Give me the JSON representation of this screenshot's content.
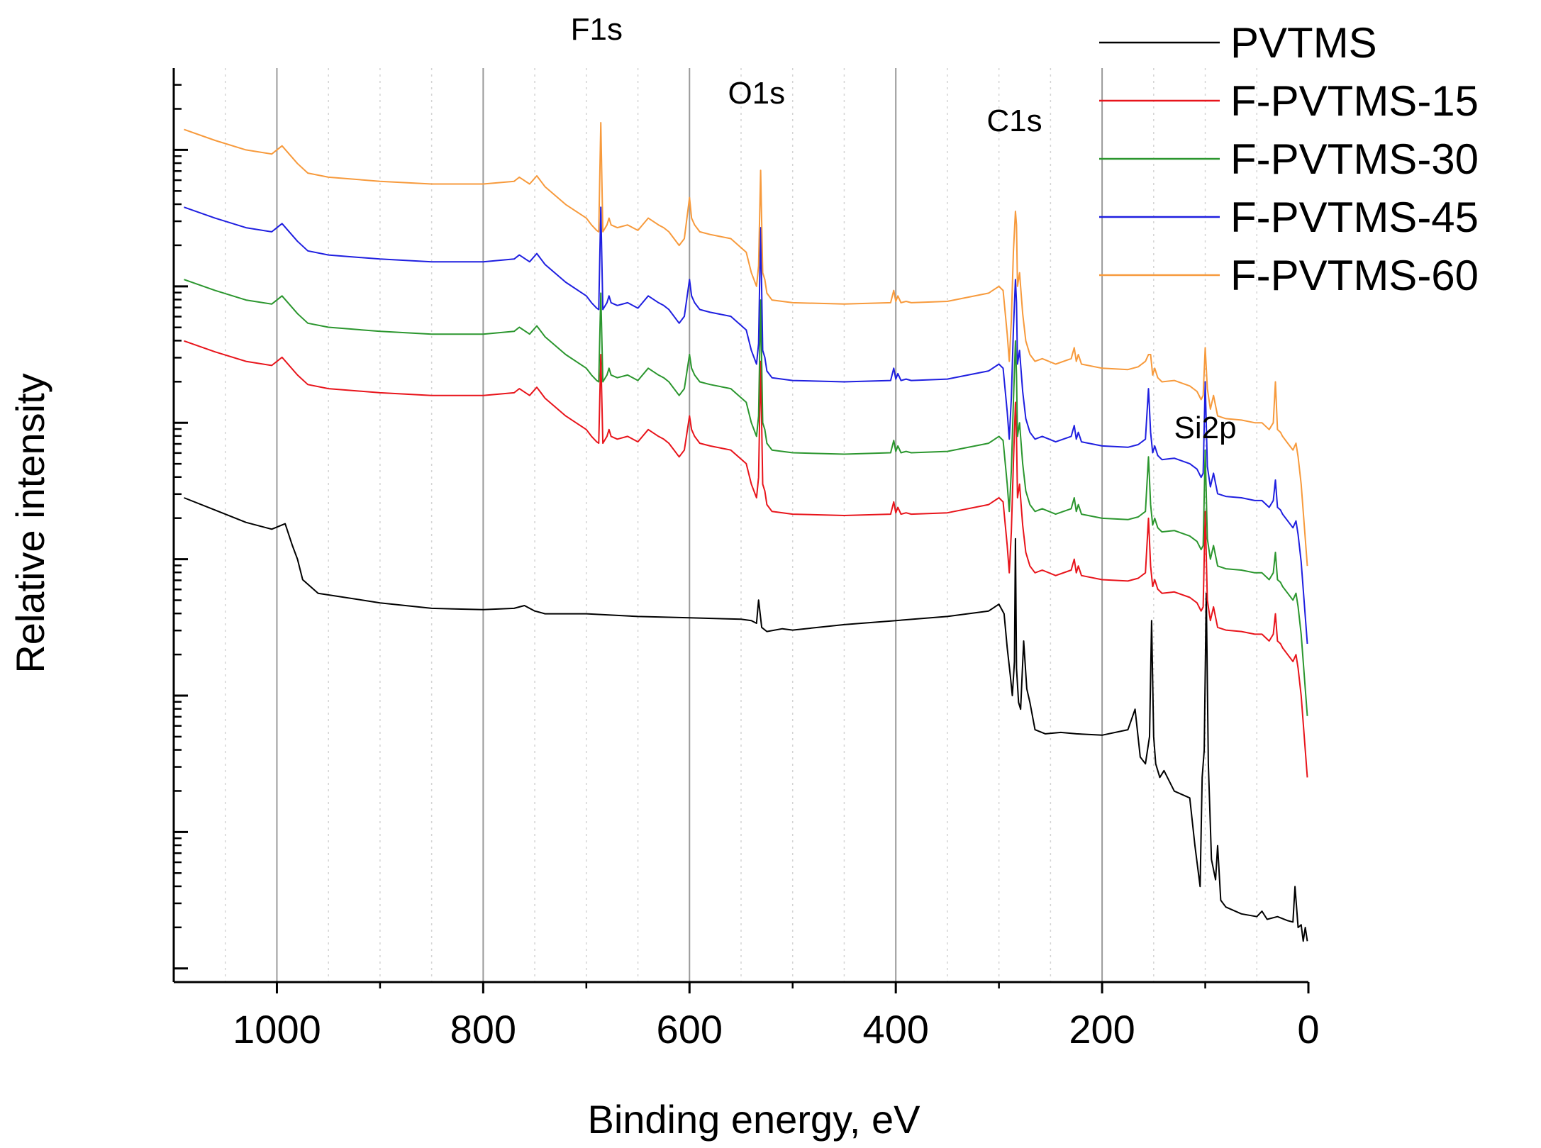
{
  "chart_data": {
    "type": "line",
    "title": "",
    "xlabel": "Binding energy, eV",
    "ylabel": "Relative intensity",
    "xlim": [
      1100,
      0
    ],
    "x_reversed": true,
    "y_scale": "log",
    "y_tick_labels_shown": false,
    "x_ticks": [
      {
        "value": 1000,
        "label": "1000"
      },
      {
        "value": 800,
        "label": "800"
      },
      {
        "value": 600,
        "label": "600"
      },
      {
        "value": 400,
        "label": "400"
      },
      {
        "value": 200,
        "label": "200"
      },
      {
        "value": 0,
        "label": "0"
      }
    ],
    "grid": {
      "major_vertical": [
        1000,
        800,
        600,
        400,
        200
      ],
      "minor_vertical_dotted": true
    },
    "annotations": [
      {
        "text": "F1s",
        "x": 690
      },
      {
        "text": "O1s",
        "x": 535
      },
      {
        "text": "C1s",
        "x": 285
      },
      {
        "text": "Si2p",
        "x": 100
      }
    ],
    "legend_position": "top-right",
    "series": [
      {
        "name": "PVTMS",
        "color": "#000000",
        "x": [
          1090,
          1060,
          1030,
          1005,
          992,
          985,
          980,
          975,
          960,
          900,
          850,
          800,
          770,
          760,
          750,
          745,
          740,
          700,
          650,
          600,
          550,
          540,
          535,
          533,
          530,
          525,
          510,
          500,
          450,
          400,
          350,
          310,
          300,
          295,
          292,
          289,
          287,
          285,
          284,
          283,
          281,
          279,
          276,
          273,
          270,
          265,
          255,
          240,
          225,
          200,
          175,
          168,
          163,
          158,
          154,
          152,
          150,
          148,
          144,
          140,
          130,
          115,
          110,
          105,
          103,
          101,
          99,
          97,
          94,
          90,
          88,
          85,
          80,
          65,
          50,
          45,
          40,
          30,
          20,
          15,
          13,
          10,
          7,
          5,
          3,
          1
        ],
        "y": [
          6.45,
          6.36,
          6.27,
          6.22,
          6.26,
          6.1,
          6.0,
          5.85,
          5.75,
          5.68,
          5.64,
          5.63,
          5.64,
          5.66,
          5.62,
          5.61,
          5.6,
          5.6,
          5.58,
          5.57,
          5.56,
          5.55,
          5.53,
          5.7,
          5.5,
          5.47,
          5.49,
          5.48,
          5.52,
          5.55,
          5.58,
          5.62,
          5.67,
          5.6,
          5.35,
          5.15,
          5.0,
          5.25,
          6.15,
          5.2,
          4.95,
          4.9,
          5.4,
          5.05,
          4.95,
          4.75,
          4.72,
          4.73,
          4.72,
          4.71,
          4.75,
          4.9,
          4.55,
          4.5,
          4.7,
          5.55,
          4.7,
          4.5,
          4.4,
          4.45,
          4.3,
          4.25,
          3.9,
          3.6,
          4.4,
          4.6,
          5.75,
          4.5,
          3.8,
          3.65,
          3.9,
          3.5,
          3.45,
          3.4,
          3.38,
          3.42,
          3.36,
          3.38,
          3.35,
          3.34,
          3.6,
          3.3,
          3.32,
          3.2,
          3.3,
          3.2
        ]
      },
      {
        "name": "F-PVTMS-15",
        "color": "#e8141b",
        "x": [
          1090,
          1060,
          1030,
          1005,
          995,
          980,
          970,
          950,
          900,
          850,
          800,
          770,
          765,
          755,
          748,
          740,
          720,
          700,
          695,
          690,
          688,
          686,
          684,
          680,
          678,
          676,
          670,
          660,
          650,
          640,
          630,
          625,
          620,
          610,
          605,
          600,
          598,
          595,
          590,
          580,
          560,
          545,
          540,
          535,
          533,
          531,
          529,
          527,
          525,
          520,
          500,
          450,
          405,
          402,
          400,
          398,
          395,
          390,
          385,
          350,
          310,
          300,
          296,
          292,
          290,
          288,
          286,
          284,
          283,
          282,
          280,
          277,
          274,
          270,
          265,
          258,
          245,
          230,
          227,
          225,
          223,
          220,
          200,
          175,
          165,
          158,
          155,
          153,
          151,
          149,
          146,
          142,
          130,
          115,
          108,
          104,
          102,
          100,
          98,
          95,
          92,
          88,
          80,
          65,
          52,
          45,
          38,
          34,
          32,
          30,
          27,
          25,
          20,
          15,
          12,
          10,
          7,
          5,
          3,
          1
        ],
        "y": [
          7.6,
          7.52,
          7.45,
          7.42,
          7.48,
          7.35,
          7.28,
          7.25,
          7.22,
          7.2,
          7.2,
          7.22,
          7.25,
          7.2,
          7.26,
          7.18,
          7.05,
          6.95,
          6.9,
          6.86,
          6.85,
          7.5,
          6.85,
          6.9,
          6.95,
          6.9,
          6.88,
          6.9,
          6.86,
          6.95,
          6.9,
          6.88,
          6.85,
          6.75,
          6.8,
          7.05,
          6.95,
          6.9,
          6.85,
          6.83,
          6.8,
          6.7,
          6.55,
          6.45,
          6.6,
          7.45,
          6.55,
          6.5,
          6.4,
          6.35,
          6.33,
          6.32,
          6.33,
          6.42,
          6.34,
          6.38,
          6.33,
          6.34,
          6.33,
          6.34,
          6.4,
          6.45,
          6.42,
          6.1,
          5.9,
          6.2,
          6.7,
          7.15,
          6.9,
          6.45,
          6.55,
          6.25,
          6.05,
          5.95,
          5.9,
          5.92,
          5.88,
          5.92,
          6.0,
          5.9,
          5.95,
          5.88,
          5.85,
          5.84,
          5.86,
          5.9,
          6.3,
          5.95,
          5.8,
          5.85,
          5.78,
          5.75,
          5.76,
          5.72,
          5.68,
          5.62,
          5.65,
          6.35,
          5.7,
          5.55,
          5.65,
          5.5,
          5.48,
          5.47,
          5.45,
          5.45,
          5.4,
          5.45,
          5.6,
          5.4,
          5.38,
          5.35,
          5.3,
          5.25,
          5.3,
          5.2,
          5.0,
          4.8,
          4.6,
          4.4
        ]
      },
      {
        "name": "F-PVTMS-30",
        "color": "#2b962e",
        "x": [
          1090,
          1060,
          1030,
          1005,
          995,
          980,
          970,
          950,
          900,
          850,
          800,
          770,
          765,
          755,
          748,
          740,
          720,
          700,
          695,
          690,
          688,
          686,
          684,
          680,
          678,
          676,
          670,
          660,
          650,
          640,
          630,
          625,
          620,
          610,
          605,
          600,
          598,
          595,
          590,
          580,
          560,
          545,
          540,
          535,
          533,
          531,
          529,
          527,
          525,
          520,
          500,
          450,
          405,
          402,
          400,
          398,
          395,
          390,
          385,
          350,
          310,
          300,
          296,
          292,
          290,
          288,
          286,
          284,
          283,
          282,
          280,
          277,
          274,
          270,
          265,
          258,
          245,
          230,
          227,
          225,
          223,
          220,
          200,
          175,
          165,
          158,
          155,
          153,
          151,
          149,
          146,
          142,
          130,
          115,
          108,
          104,
          102,
          100,
          98,
          95,
          92,
          88,
          80,
          65,
          52,
          45,
          38,
          34,
          32,
          30,
          27,
          25,
          20,
          15,
          12,
          10,
          7,
          5,
          3,
          1
        ],
        "y": [
          8.05,
          7.97,
          7.9,
          7.87,
          7.93,
          7.8,
          7.73,
          7.7,
          7.67,
          7.65,
          7.65,
          7.67,
          7.7,
          7.65,
          7.71,
          7.63,
          7.5,
          7.4,
          7.35,
          7.31,
          7.3,
          7.95,
          7.3,
          7.35,
          7.4,
          7.35,
          7.33,
          7.35,
          7.31,
          7.4,
          7.35,
          7.33,
          7.3,
          7.2,
          7.25,
          7.5,
          7.4,
          7.35,
          7.3,
          7.28,
          7.25,
          7.15,
          7.0,
          6.9,
          7.05,
          7.9,
          7.0,
          6.95,
          6.85,
          6.8,
          6.78,
          6.77,
          6.78,
          6.87,
          6.79,
          6.83,
          6.78,
          6.79,
          6.78,
          6.79,
          6.85,
          6.9,
          6.87,
          6.55,
          6.35,
          6.65,
          7.15,
          7.6,
          7.35,
          6.9,
          7.0,
          6.7,
          6.5,
          6.4,
          6.35,
          6.37,
          6.33,
          6.37,
          6.45,
          6.35,
          6.4,
          6.33,
          6.3,
          6.29,
          6.31,
          6.35,
          6.75,
          6.4,
          6.25,
          6.3,
          6.23,
          6.2,
          6.21,
          6.17,
          6.13,
          6.07,
          6.1,
          6.8,
          6.15,
          6.0,
          6.1,
          5.95,
          5.93,
          5.92,
          5.9,
          5.9,
          5.85,
          5.9,
          6.05,
          5.85,
          5.83,
          5.8,
          5.75,
          5.7,
          5.75,
          5.65,
          5.45,
          5.25,
          5.05,
          4.85
        ]
      },
      {
        "name": "F-PVTMS-45",
        "color": "#1f1fe0",
        "x": [
          1090,
          1060,
          1030,
          1005,
          995,
          980,
          970,
          950,
          900,
          850,
          800,
          770,
          765,
          755,
          748,
          740,
          720,
          700,
          695,
          690,
          688,
          686,
          684,
          680,
          678,
          676,
          670,
          660,
          650,
          640,
          630,
          625,
          620,
          610,
          605,
          600,
          598,
          595,
          590,
          580,
          560,
          545,
          540,
          535,
          533,
          531,
          529,
          527,
          525,
          520,
          500,
          450,
          405,
          402,
          400,
          398,
          395,
          390,
          385,
          350,
          310,
          300,
          296,
          292,
          290,
          288,
          286,
          284,
          283,
          282,
          280,
          277,
          274,
          270,
          265,
          258,
          245,
          230,
          227,
          225,
          223,
          220,
          200,
          175,
          165,
          158,
          155,
          153,
          151,
          149,
          146,
          142,
          130,
          115,
          108,
          104,
          102,
          100,
          98,
          95,
          92,
          88,
          80,
          65,
          52,
          45,
          38,
          34,
          32,
          30,
          27,
          25,
          20,
          15,
          12,
          10,
          7,
          5,
          3,
          1
        ],
        "y": [
          8.58,
          8.5,
          8.43,
          8.4,
          8.46,
          8.33,
          8.26,
          8.23,
          8.2,
          8.18,
          8.18,
          8.2,
          8.23,
          8.18,
          8.24,
          8.16,
          8.03,
          7.93,
          7.88,
          7.84,
          7.83,
          8.58,
          7.83,
          7.88,
          7.93,
          7.88,
          7.86,
          7.88,
          7.84,
          7.93,
          7.88,
          7.86,
          7.83,
          7.73,
          7.78,
          8.05,
          7.93,
          7.88,
          7.83,
          7.81,
          7.78,
          7.68,
          7.53,
          7.43,
          7.58,
          8.43,
          7.53,
          7.48,
          7.38,
          7.33,
          7.31,
          7.3,
          7.31,
          7.4,
          7.32,
          7.36,
          7.31,
          7.32,
          7.31,
          7.32,
          7.38,
          7.43,
          7.4,
          7.08,
          6.88,
          7.18,
          7.68,
          8.05,
          7.88,
          7.43,
          7.53,
          7.23,
          7.03,
          6.93,
          6.88,
          6.9,
          6.86,
          6.9,
          6.98,
          6.88,
          6.93,
          6.86,
          6.83,
          6.82,
          6.84,
          6.88,
          7.25,
          6.93,
          6.78,
          6.83,
          6.76,
          6.73,
          6.74,
          6.7,
          6.66,
          6.6,
          6.63,
          7.3,
          6.68,
          6.53,
          6.63,
          6.48,
          6.46,
          6.45,
          6.43,
          6.43,
          6.38,
          6.43,
          6.58,
          6.38,
          6.36,
          6.33,
          6.28,
          6.23,
          6.28,
          6.18,
          5.98,
          5.78,
          5.58,
          5.38
        ]
      },
      {
        "name": "F-PVTMS-60",
        "color": "#f79a3c",
        "x": [
          1090,
          1060,
          1030,
          1005,
          995,
          980,
          970,
          950,
          900,
          850,
          800,
          770,
          765,
          755,
          748,
          740,
          720,
          700,
          695,
          690,
          688,
          686,
          684,
          680,
          678,
          676,
          670,
          660,
          650,
          640,
          630,
          625,
          620,
          610,
          605,
          600,
          598,
          595,
          590,
          580,
          560,
          545,
          540,
          535,
          533,
          531,
          529,
          527,
          525,
          520,
          500,
          450,
          405,
          402,
          400,
          398,
          395,
          390,
          385,
          350,
          310,
          300,
          296,
          292,
          290,
          288,
          286,
          284,
          283,
          282,
          280,
          277,
          274,
          270,
          265,
          258,
          245,
          230,
          227,
          225,
          223,
          220,
          200,
          175,
          165,
          158,
          155,
          153,
          151,
          149,
          146,
          142,
          130,
          115,
          108,
          104,
          102,
          100,
          98,
          95,
          92,
          88,
          80,
          65,
          52,
          45,
          38,
          34,
          32,
          30,
          27,
          25,
          20,
          15,
          12,
          10,
          7,
          5,
          3,
          1
        ],
        "y": [
          9.15,
          9.07,
          9.0,
          8.97,
          9.03,
          8.9,
          8.83,
          8.8,
          8.77,
          8.75,
          8.75,
          8.77,
          8.8,
          8.75,
          8.81,
          8.73,
          8.6,
          8.5,
          8.45,
          8.41,
          8.4,
          9.2,
          8.4,
          8.45,
          8.5,
          8.45,
          8.43,
          8.45,
          8.41,
          8.5,
          8.45,
          8.43,
          8.4,
          8.3,
          8.35,
          8.65,
          8.5,
          8.45,
          8.4,
          8.38,
          8.35,
          8.25,
          8.1,
          8.0,
          8.15,
          8.85,
          8.1,
          8.05,
          7.95,
          7.9,
          7.88,
          7.87,
          7.88,
          7.97,
          7.89,
          7.93,
          7.88,
          7.89,
          7.88,
          7.89,
          7.95,
          8.0,
          7.97,
          7.65,
          7.45,
          7.75,
          8.25,
          8.55,
          8.45,
          8.0,
          8.1,
          7.8,
          7.6,
          7.5,
          7.45,
          7.47,
          7.43,
          7.47,
          7.55,
          7.45,
          7.5,
          7.43,
          7.4,
          7.39,
          7.41,
          7.45,
          7.5,
          7.5,
          7.35,
          7.4,
          7.33,
          7.3,
          7.31,
          7.27,
          7.23,
          7.17,
          7.2,
          7.55,
          7.25,
          7.1,
          7.2,
          7.05,
          7.03,
          7.02,
          7.0,
          7.0,
          6.95,
          7.0,
          7.3,
          6.95,
          6.93,
          6.9,
          6.85,
          6.8,
          6.85,
          6.75,
          6.55,
          6.35,
          6.15,
          5.95
        ]
      }
    ]
  }
}
